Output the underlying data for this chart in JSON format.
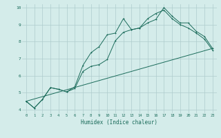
{
  "title": "",
  "xlabel": "Humidex (Indice chaleur)",
  "background_color": "#d4ecea",
  "grid_color": "#aecccc",
  "line_color": "#1a6b5a",
  "xlim": [
    -0.5,
    23.5
  ],
  "ylim": [
    3.8,
    10.2
  ],
  "xticks": [
    0,
    1,
    2,
    3,
    4,
    5,
    6,
    7,
    8,
    9,
    10,
    11,
    12,
    13,
    14,
    15,
    16,
    17,
    18,
    19,
    20,
    21,
    22,
    23
  ],
  "yticks": [
    4,
    5,
    6,
    7,
    8,
    9,
    10
  ],
  "line1_x": [
    0,
    1,
    2,
    3,
    4,
    5,
    6,
    7,
    8,
    9,
    10,
    11,
    12,
    13,
    14,
    15,
    16,
    17,
    18,
    19,
    20,
    21,
    22,
    23
  ],
  "line1_y": [
    4.5,
    4.1,
    4.6,
    5.3,
    5.2,
    5.05,
    5.35,
    6.6,
    7.35,
    7.7,
    8.4,
    8.5,
    9.35,
    8.7,
    8.8,
    9.1,
    9.3,
    10.0,
    9.5,
    9.1,
    9.1,
    8.6,
    8.3,
    7.6
  ],
  "line2_x": [
    0,
    1,
    2,
    3,
    4,
    5,
    6,
    7,
    8,
    9,
    10,
    11,
    12,
    13,
    14,
    15,
    16,
    17,
    18,
    19,
    20,
    21,
    22,
    23
  ],
  "line2_y": [
    4.5,
    4.1,
    4.6,
    5.3,
    5.2,
    5.05,
    5.25,
    6.25,
    6.55,
    6.65,
    6.95,
    8.05,
    8.55,
    8.7,
    8.8,
    9.35,
    9.65,
    9.85,
    9.35,
    9.0,
    8.8,
    8.5,
    8.15,
    7.5
  ],
  "line3_x": [
    0,
    23
  ],
  "line3_y": [
    4.5,
    7.6
  ]
}
